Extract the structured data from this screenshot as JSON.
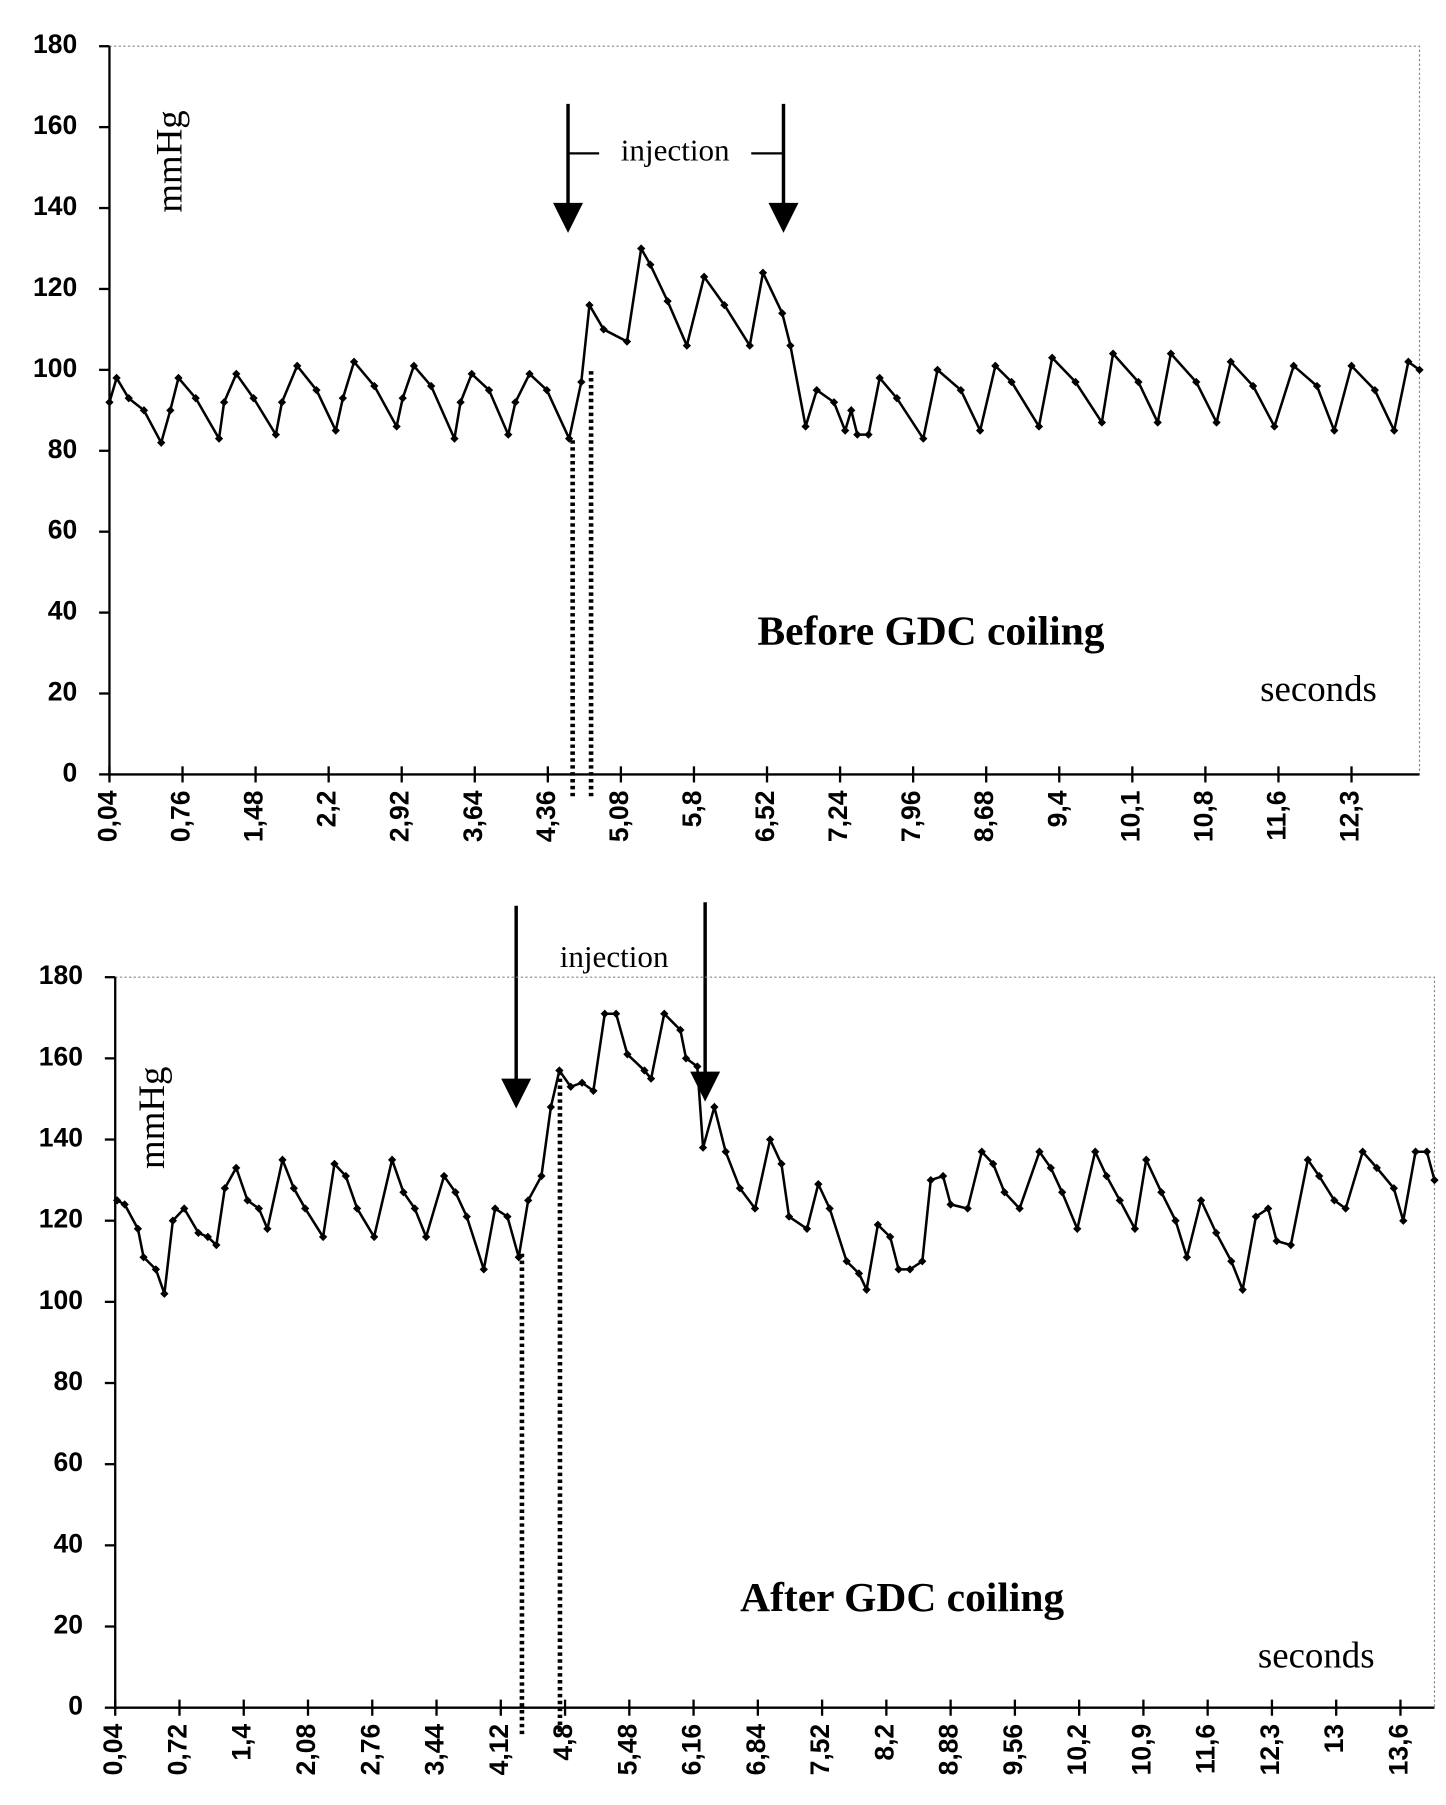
{
  "chart_data": [
    {
      "type": "line",
      "y_label": "mmHg",
      "x_label": "seconds",
      "label": "Before GDC coiling",
      "annotation": "injection",
      "color": "#000000",
      "ylim": [
        0,
        180
      ],
      "yticks": [
        0,
        20,
        40,
        60,
        80,
        100,
        120,
        140,
        160,
        180
      ],
      "xlim": [
        0.04,
        12.95
      ],
      "xticks": [
        {
          "value": 0.04,
          "label": "0,04"
        },
        {
          "value": 0.76,
          "label": "0,76"
        },
        {
          "value": 1.48,
          "label": "1,48"
        },
        {
          "value": 2.2,
          "label": "2,2"
        },
        {
          "value": 2.92,
          "label": "2,92"
        },
        {
          "value": 3.64,
          "label": "3,64"
        },
        {
          "value": 4.36,
          "label": "4,36"
        },
        {
          "value": 5.08,
          "label": "5,08"
        },
        {
          "value": 5.8,
          "label": "5,8"
        },
        {
          "value": 6.52,
          "label": "6,52"
        },
        {
          "value": 7.24,
          "label": "7,24"
        },
        {
          "value": 7.96,
          "label": "7,96"
        },
        {
          "value": 8.68,
          "label": "8,68"
        },
        {
          "value": 9.4,
          "label": "9,4"
        },
        {
          "value": 10.12,
          "label": "10,1"
        },
        {
          "value": 10.84,
          "label": "10,8"
        },
        {
          "value": 11.56,
          "label": "11,6"
        },
        {
          "value": 12.28,
          "label": "12,3"
        }
      ],
      "x": [
        0.04,
        0.11,
        0.23,
        0.38,
        0.55,
        0.64,
        0.72,
        0.89,
        1.12,
        1.17,
        1.29,
        1.46,
        1.68,
        1.74,
        1.89,
        2.08,
        2.27,
        2.34,
        2.45,
        2.65,
        2.87,
        2.93,
        3.04,
        3.21,
        3.44,
        3.5,
        3.61,
        3.78,
        3.97,
        4.04,
        4.18,
        4.35,
        4.57,
        4.69,
        4.77,
        4.91,
        5.14,
        5.28,
        5.37,
        5.54,
        5.73,
        5.9,
        6.1,
        6.35,
        6.48,
        6.67,
        6.75,
        6.9,
        7.01,
        7.18,
        7.29,
        7.35,
        7.41,
        7.52,
        7.63,
        7.8,
        8.06,
        8.2,
        8.43,
        8.62,
        8.77,
        8.93,
        9.2,
        9.33,
        9.56,
        9.82,
        9.93,
        10.18,
        10.37,
        10.5,
        10.75,
        10.95,
        11.09,
        11.31,
        11.52,
        11.71,
        11.94,
        12.11,
        12.28,
        12.51,
        12.7,
        12.84,
        12.95
      ],
      "values": [
        92,
        98,
        93,
        90,
        82,
        90,
        98,
        93,
        83,
        92,
        99,
        93,
        84,
        92,
        101,
        95,
        85,
        93,
        102,
        96,
        86,
        93,
        101,
        96,
        83,
        92,
        99,
        95,
        84,
        92,
        99,
        95,
        83,
        97,
        116,
        110,
        107,
        130,
        126,
        117,
        106,
        123,
        116,
        106,
        124,
        114,
        106,
        86,
        95,
        92,
        85,
        90,
        84,
        84,
        98,
        93,
        83,
        100,
        95,
        85,
        101,
        97,
        86,
        103,
        97,
        87,
        104,
        97,
        87,
        104,
        97,
        87,
        102,
        96,
        86,
        101,
        96,
        85,
        101,
        95,
        85,
        102,
        100
      ]
    },
    {
      "type": "line",
      "y_label": "mmHg",
      "x_label": "seconds",
      "label": "After GDC coiling",
      "annotation": "injection",
      "color": "#000000",
      "ylim": [
        0,
        180
      ],
      "yticks": [
        0,
        20,
        40,
        60,
        80,
        100,
        120,
        140,
        160,
        180
      ],
      "xlim": [
        0.04,
        14.0
      ],
      "xticks": [
        {
          "value": 0.04,
          "label": "0,04"
        },
        {
          "value": 0.72,
          "label": "0,72"
        },
        {
          "value": 1.4,
          "label": "1,4"
        },
        {
          "value": 2.08,
          "label": "2,08"
        },
        {
          "value": 2.76,
          "label": "2,76"
        },
        {
          "value": 3.44,
          "label": "3,44"
        },
        {
          "value": 4.12,
          "label": "4,12"
        },
        {
          "value": 4.8,
          "label": "4,8"
        },
        {
          "value": 5.48,
          "label": "5,48"
        },
        {
          "value": 6.16,
          "label": "6,16"
        },
        {
          "value": 6.84,
          "label": "6,84"
        },
        {
          "value": 7.52,
          "label": "7,52"
        },
        {
          "value": 8.2,
          "label": "8,2"
        },
        {
          "value": 8.88,
          "label": "8,88"
        },
        {
          "value": 9.56,
          "label": "9,56"
        },
        {
          "value": 10.24,
          "label": "10,2"
        },
        {
          "value": 10.92,
          "label": "10,9"
        },
        {
          "value": 11.6,
          "label": "11,6"
        },
        {
          "value": 12.28,
          "label": "12,3"
        },
        {
          "value": 12.96,
          "label": "13"
        },
        {
          "value": 13.64,
          "label": "13,6"
        }
      ],
      "x": [
        0.06,
        0.14,
        0.28,
        0.34,
        0.47,
        0.56,
        0.65,
        0.77,
        0.92,
        1.02,
        1.11,
        1.2,
        1.32,
        1.44,
        1.56,
        1.65,
        1.81,
        1.93,
        2.05,
        2.24,
        2.36,
        2.48,
        2.6,
        2.78,
        2.97,
        3.09,
        3.21,
        3.33,
        3.52,
        3.64,
        3.76,
        3.94,
        4.06,
        4.19,
        4.31,
        4.41,
        4.55,
        4.65,
        4.74,
        4.86,
        4.98,
        5.1,
        5.22,
        5.34,
        5.46,
        5.64,
        5.71,
        5.85,
        6.02,
        6.08,
        6.2,
        6.26,
        6.38,
        6.5,
        6.65,
        6.81,
        6.97,
        7.09,
        7.17,
        7.36,
        7.48,
        7.6,
        7.78,
        7.91,
        7.99,
        8.11,
        8.24,
        8.33,
        8.45,
        8.58,
        8.67,
        8.8,
        8.88,
        9.06,
        9.21,
        9.33,
        9.45,
        9.61,
        9.82,
        9.94,
        10.06,
        10.22,
        10.41,
        10.53,
        10.67,
        10.83,
        10.95,
        11.11,
        11.26,
        11.38,
        11.53,
        11.69,
        11.85,
        11.97,
        12.11,
        12.24,
        12.33,
        12.48,
        12.66,
        12.78,
        12.94,
        13.06,
        13.24,
        13.39,
        13.57,
        13.67,
        13.8,
        13.92,
        14.0
      ],
      "values": [
        125,
        124,
        118,
        111,
        108,
        102,
        120,
        123,
        117,
        116,
        114,
        128,
        133,
        125,
        123,
        118,
        135,
        128,
        123,
        116,
        134,
        131,
        123,
        116,
        135,
        127,
        123,
        116,
        131,
        127,
        121,
        108,
        123,
        121,
        111,
        125,
        131,
        148,
        157,
        153,
        154,
        152,
        171,
        171,
        161,
        157,
        155,
        171,
        167,
        160,
        158,
        138,
        148,
        137,
        128,
        123,
        140,
        134,
        121,
        118,
        129,
        123,
        110,
        107,
        103,
        119,
        116,
        108,
        108,
        110,
        130,
        131,
        124,
        123,
        137,
        134,
        127,
        123,
        137,
        133,
        127,
        118,
        137,
        131,
        125,
        118,
        135,
        127,
        120,
        111,
        125,
        117,
        110,
        103,
        121,
        123,
        115,
        114,
        135,
        131,
        125,
        123,
        137,
        133,
        128,
        120,
        137,
        137,
        130
      ]
    }
  ]
}
